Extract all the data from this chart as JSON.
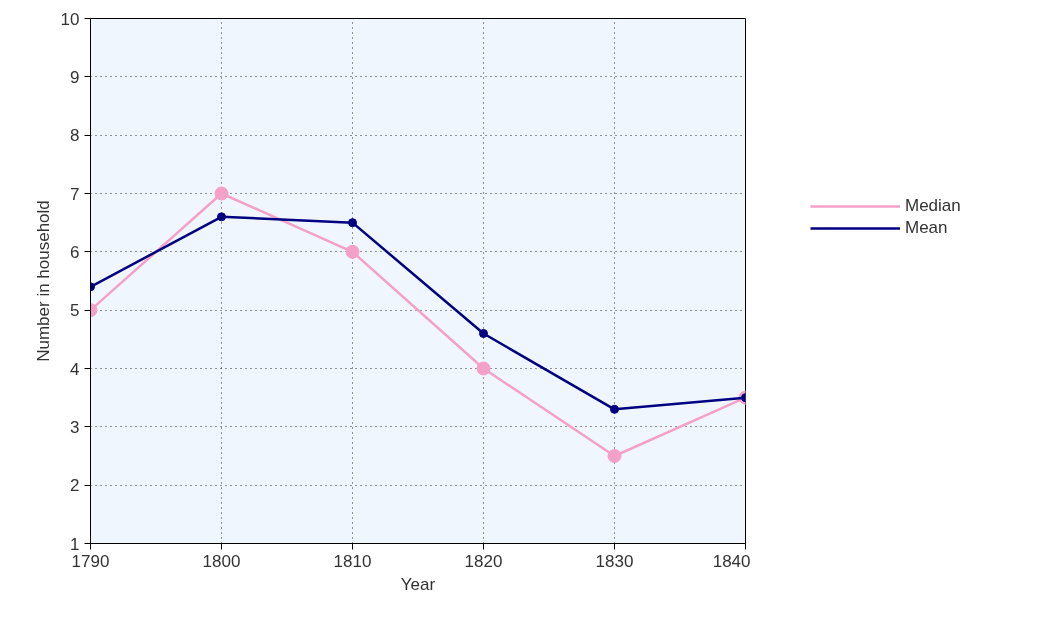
{
  "chart_data": {
    "type": "line",
    "xlabel": "Year",
    "ylabel": "Number in household",
    "x": [
      1790,
      1800,
      1810,
      1820,
      1830,
      1840
    ],
    "series": [
      {
        "name": "Median",
        "color": "#f4a0c8",
        "values": [
          5,
          7,
          6,
          4,
          2.5,
          3.5
        ]
      },
      {
        "name": "Mean",
        "color": "#000080",
        "values": [
          5.4,
          6.6,
          6.5,
          4.6,
          3.3,
          3.5
        ]
      }
    ],
    "xlim": [
      1790,
      1840
    ],
    "xticks": [
      1790,
      1800,
      1810,
      1820,
      1830,
      1840
    ],
    "ylim": [
      1,
      10
    ],
    "yticks": [
      1,
      2,
      3,
      4,
      5,
      6,
      7,
      8,
      9,
      10
    ],
    "grid": true,
    "legend": "right",
    "marker": "circle",
    "line_style": "solid"
  }
}
